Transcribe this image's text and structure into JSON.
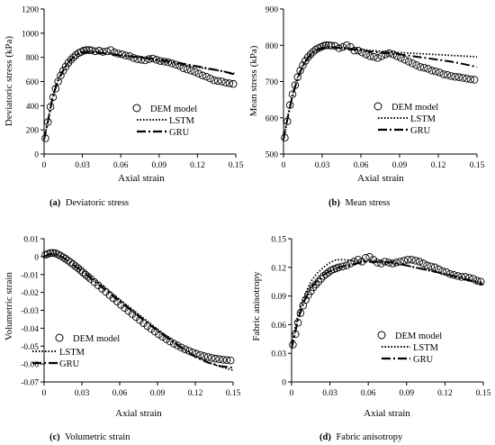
{
  "chart_data": [
    {
      "type": "line",
      "panel": "(a)",
      "caption_label": "(a)",
      "caption_text": "Deviatoric stress",
      "xlabel": "Axial strain",
      "ylabel": "Deviatoric stress (kPa)",
      "xlim": [
        0,
        0.15
      ],
      "ylim": [
        0,
        1200
      ],
      "xticks": [
        "0",
        "0.03",
        "0.06",
        "0.09",
        "0.12",
        "0.15"
      ],
      "yticks": [
        "0",
        "200",
        "400",
        "600",
        "800",
        "1000",
        "1200"
      ],
      "legend_position": "center-right",
      "series": [
        {
          "name": "DEM model",
          "style": "markers",
          "x": [
            0.001,
            0.003,
            0.005,
            0.007,
            0.009,
            0.011,
            0.013,
            0.015,
            0.017,
            0.019,
            0.021,
            0.023,
            0.025,
            0.027,
            0.029,
            0.031,
            0.033,
            0.035,
            0.037,
            0.04,
            0.043,
            0.046,
            0.049,
            0.052,
            0.055,
            0.058,
            0.061,
            0.064,
            0.067,
            0.07,
            0.073,
            0.076,
            0.079,
            0.082,
            0.085,
            0.088,
            0.091,
            0.094,
            0.097,
            0.1,
            0.103,
            0.106,
            0.109,
            0.112,
            0.115,
            0.118,
            0.121,
            0.124,
            0.127,
            0.13,
            0.133,
            0.136,
            0.139,
            0.142,
            0.145,
            0.148
          ],
          "y": [
            130,
            265,
            390,
            470,
            540,
            600,
            650,
            690,
            725,
            755,
            780,
            800,
            820,
            835,
            845,
            855,
            860,
            860,
            858,
            850,
            855,
            845,
            850,
            860,
            840,
            830,
            825,
            815,
            810,
            795,
            785,
            780,
            775,
            785,
            790,
            780,
            770,
            765,
            760,
            750,
            740,
            730,
            710,
            700,
            690,
            680,
            665,
            650,
            640,
            625,
            610,
            605,
            600,
            590,
            585,
            580
          ]
        },
        {
          "name": "LSTM",
          "style": "dotted",
          "x": [
            0,
            0.003,
            0.006,
            0.009,
            0.012,
            0.015,
            0.018,
            0.021,
            0.024,
            0.027,
            0.03,
            0.035,
            0.04,
            0.045,
            0.05,
            0.06,
            0.07,
            0.08,
            0.09,
            0.1,
            0.11,
            0.12,
            0.13,
            0.14,
            0.15
          ],
          "y": [
            120,
            280,
            440,
            560,
            640,
            700,
            745,
            785,
            815,
            835,
            845,
            852,
            848,
            842,
            835,
            820,
            805,
            790,
            770,
            750,
            735,
            720,
            700,
            685,
            665
          ]
        },
        {
          "name": "GRU",
          "style": "dashdot",
          "x": [
            0,
            0.003,
            0.006,
            0.009,
            0.012,
            0.015,
            0.018,
            0.021,
            0.024,
            0.027,
            0.03,
            0.035,
            0.04,
            0.045,
            0.05,
            0.06,
            0.07,
            0.08,
            0.09,
            0.1,
            0.11,
            0.12,
            0.13,
            0.14,
            0.15
          ],
          "y": [
            120,
            270,
            430,
            550,
            630,
            690,
            740,
            780,
            810,
            830,
            840,
            845,
            840,
            835,
            830,
            815,
            805,
            795,
            780,
            765,
            745,
            725,
            705,
            685,
            655
          ]
        }
      ]
    },
    {
      "type": "line",
      "panel": "(b)",
      "caption_label": "(b)",
      "caption_text": "Mean stress",
      "xlabel": "Axial strain",
      "ylabel": "Mean stress (kPa)",
      "xlim": [
        0,
        0.15
      ],
      "ylim": [
        500,
        900
      ],
      "xticks": [
        "0",
        "0.03",
        "0.06",
        "0.09",
        "0.12",
        "0.15"
      ],
      "yticks": [
        "500",
        "600",
        "700",
        "800",
        "900"
      ],
      "legend_position": "center-right",
      "series": [
        {
          "name": "DEM model",
          "style": "markers",
          "x": [
            0.001,
            0.003,
            0.005,
            0.007,
            0.009,
            0.011,
            0.013,
            0.015,
            0.017,
            0.019,
            0.021,
            0.023,
            0.025,
            0.027,
            0.029,
            0.031,
            0.033,
            0.035,
            0.037,
            0.04,
            0.043,
            0.046,
            0.049,
            0.052,
            0.055,
            0.058,
            0.061,
            0.064,
            0.067,
            0.07,
            0.073,
            0.076,
            0.079,
            0.082,
            0.085,
            0.088,
            0.091,
            0.094,
            0.097,
            0.1,
            0.103,
            0.106,
            0.109,
            0.112,
            0.115,
            0.118,
            0.121,
            0.124,
            0.127,
            0.13,
            0.133,
            0.136,
            0.139,
            0.142,
            0.145,
            0.148
          ],
          "y": [
            545,
            590,
            635,
            665,
            690,
            712,
            730,
            745,
            757,
            767,
            775,
            782,
            788,
            792,
            795,
            798,
            800,
            800,
            799,
            798,
            792,
            795,
            800,
            795,
            785,
            785,
            780,
            775,
            770,
            768,
            765,
            770,
            775,
            778,
            775,
            770,
            765,
            760,
            755,
            750,
            745,
            740,
            738,
            735,
            730,
            728,
            725,
            720,
            718,
            715,
            713,
            712,
            710,
            708,
            706,
            705
          ]
        },
        {
          "name": "LSTM",
          "style": "dotted",
          "x": [
            0,
            0.003,
            0.006,
            0.009,
            0.012,
            0.015,
            0.018,
            0.021,
            0.024,
            0.027,
            0.03,
            0.035,
            0.04,
            0.045,
            0.05,
            0.06,
            0.07,
            0.08,
            0.09,
            0.1,
            0.11,
            0.12,
            0.13,
            0.14,
            0.15
          ],
          "y": [
            540,
            600,
            650,
            690,
            722,
            745,
            762,
            775,
            785,
            790,
            793,
            796,
            795,
            794,
            792,
            788,
            785,
            782,
            780,
            778,
            776,
            774,
            772,
            770,
            768
          ]
        },
        {
          "name": "GRU",
          "style": "dashdot",
          "x": [
            0,
            0.003,
            0.006,
            0.009,
            0.012,
            0.015,
            0.018,
            0.021,
            0.024,
            0.027,
            0.03,
            0.035,
            0.04,
            0.045,
            0.05,
            0.06,
            0.07,
            0.08,
            0.09,
            0.1,
            0.11,
            0.12,
            0.13,
            0.14,
            0.15
          ],
          "y": [
            540,
            595,
            645,
            685,
            718,
            742,
            760,
            773,
            783,
            789,
            792,
            795,
            794,
            792,
            790,
            786,
            782,
            778,
            775,
            770,
            765,
            760,
            755,
            748,
            740
          ]
        }
      ]
    },
    {
      "type": "line",
      "panel": "(c)",
      "caption_label": "(c)",
      "caption_text": "Volumetric strain",
      "xlabel": "Axial strain",
      "ylabel": "Volumetric strain",
      "xlim": [
        0,
        0.15
      ],
      "ylim": [
        -0.07,
        0.01
      ],
      "xticks": [
        "0",
        "0.03",
        "0.06",
        "0.09",
        "0.12",
        "0.15"
      ],
      "yticks": [
        "0.01",
        "0",
        "-0.01",
        "-0.02",
        "-0.03",
        "-0.04",
        "-0.05",
        "-0.06",
        "-0.07"
      ],
      "legend_position": "bottom-left",
      "series": [
        {
          "name": "DEM model",
          "style": "markers",
          "x": [
            0.001,
            0.003,
            0.005,
            0.007,
            0.009,
            0.011,
            0.013,
            0.015,
            0.017,
            0.019,
            0.021,
            0.023,
            0.025,
            0.027,
            0.029,
            0.031,
            0.033,
            0.035,
            0.037,
            0.04,
            0.043,
            0.046,
            0.049,
            0.052,
            0.055,
            0.058,
            0.061,
            0.064,
            0.067,
            0.07,
            0.073,
            0.076,
            0.079,
            0.082,
            0.085,
            0.088,
            0.091,
            0.094,
            0.097,
            0.1,
            0.103,
            0.106,
            0.109,
            0.112,
            0.115,
            0.118,
            0.121,
            0.124,
            0.127,
            0.13,
            0.133,
            0.136,
            0.139,
            0.142,
            0.145,
            0.148
          ],
          "y": [
            0.001,
            0.0015,
            0.002,
            0.002,
            0.0018,
            0.0012,
            0.0005,
            -0.0003,
            -0.0012,
            -0.0022,
            -0.0032,
            -0.0043,
            -0.0054,
            -0.0065,
            -0.0077,
            -0.0089,
            -0.0101,
            -0.0113,
            -0.0125,
            -0.0143,
            -0.0161,
            -0.0179,
            -0.0197,
            -0.0215,
            -0.0233,
            -0.0251,
            -0.0269,
            -0.0287,
            -0.0304,
            -0.0321,
            -0.0338,
            -0.0355,
            -0.0372,
            -0.0388,
            -0.0404,
            -0.0419,
            -0.0434,
            -0.0448,
            -0.0461,
            -0.0474,
            -0.0486,
            -0.0497,
            -0.0508,
            -0.0518,
            -0.0527,
            -0.0535,
            -0.0543,
            -0.055,
            -0.0556,
            -0.0561,
            -0.0566,
            -0.057,
            -0.0573,
            -0.0576,
            -0.0578,
            -0.058
          ]
        },
        {
          "name": "LSTM",
          "style": "dotted",
          "x": [
            0,
            0.005,
            0.01,
            0.015,
            0.02,
            0.025,
            0.03,
            0.04,
            0.05,
            0.06,
            0.07,
            0.08,
            0.09,
            0.1,
            0.11,
            0.12,
            0.13,
            0.14,
            0.15
          ],
          "y": [
            0,
            0.0015,
            0.001,
            -0.0005,
            -0.0025,
            -0.005,
            -0.0075,
            -0.013,
            -0.0185,
            -0.024,
            -0.0295,
            -0.035,
            -0.0405,
            -0.046,
            -0.051,
            -0.0555,
            -0.059,
            -0.0615,
            -0.0635
          ]
        },
        {
          "name": "GRU",
          "style": "dashdot",
          "x": [
            0,
            0.005,
            0.01,
            0.015,
            0.02,
            0.025,
            0.03,
            0.04,
            0.05,
            0.06,
            0.07,
            0.08,
            0.09,
            0.1,
            0.11,
            0.12,
            0.13,
            0.14,
            0.15
          ],
          "y": [
            0,
            0.0015,
            0.0012,
            -0.0005,
            -0.003,
            -0.0055,
            -0.0082,
            -0.0138,
            -0.0194,
            -0.025,
            -0.0305,
            -0.036,
            -0.0413,
            -0.0465,
            -0.0515,
            -0.056,
            -0.0592,
            -0.0612,
            -0.062
          ]
        }
      ]
    },
    {
      "type": "line",
      "panel": "(d)",
      "caption_label": "(d)",
      "caption_text": "Fabric anisotropy",
      "xlabel": "Axial strain",
      "ylabel": "Fabric anisotropy",
      "xlim": [
        0,
        0.15
      ],
      "ylim": [
        0,
        0.15
      ],
      "xticks": [
        "0",
        "0.03",
        "0.06",
        "0.09",
        "0.12",
        "0.15"
      ],
      "yticks": [
        "0",
        "0.03",
        "0.06",
        "0.09",
        "0.12",
        "0.15"
      ],
      "legend_position": "center-right",
      "series": [
        {
          "name": "DEM model",
          "style": "markers",
          "x": [
            0.001,
            0.003,
            0.005,
            0.007,
            0.009,
            0.011,
            0.013,
            0.015,
            0.017,
            0.019,
            0.021,
            0.023,
            0.025,
            0.027,
            0.029,
            0.031,
            0.033,
            0.035,
            0.037,
            0.04,
            0.043,
            0.046,
            0.049,
            0.052,
            0.055,
            0.058,
            0.061,
            0.064,
            0.067,
            0.07,
            0.073,
            0.076,
            0.079,
            0.082,
            0.085,
            0.088,
            0.091,
            0.094,
            0.097,
            0.1,
            0.103,
            0.106,
            0.109,
            0.112,
            0.115,
            0.118,
            0.121,
            0.124,
            0.127,
            0.13,
            0.133,
            0.136,
            0.139,
            0.142,
            0.145,
            0.148
          ],
          "y": [
            0.039,
            0.05,
            0.062,
            0.072,
            0.08,
            0.086,
            0.091,
            0.095,
            0.099,
            0.102,
            0.105,
            0.108,
            0.111,
            0.113,
            0.115,
            0.117,
            0.118,
            0.119,
            0.12,
            0.121,
            0.122,
            0.124,
            0.126,
            0.128,
            0.126,
            0.13,
            0.131,
            0.128,
            0.125,
            0.124,
            0.126,
            0.125,
            0.124,
            0.125,
            0.126,
            0.127,
            0.128,
            0.128,
            0.127,
            0.126,
            0.124,
            0.122,
            0.121,
            0.12,
            0.118,
            0.116,
            0.115,
            0.113,
            0.112,
            0.111,
            0.11,
            0.11,
            0.109,
            0.108,
            0.106,
            0.105
          ]
        },
        {
          "name": "LSTM",
          "style": "dotted",
          "x": [
            0,
            0.005,
            0.01,
            0.015,
            0.02,
            0.025,
            0.03,
            0.035,
            0.04,
            0.05,
            0.06,
            0.07,
            0.08,
            0.09,
            0.1,
            0.11,
            0.12,
            0.13,
            0.14,
            0.15
          ],
          "y": [
            0.04,
            0.07,
            0.09,
            0.105,
            0.114,
            0.12,
            0.125,
            0.128,
            0.128,
            0.127,
            0.126,
            0.125,
            0.124,
            0.122,
            0.119,
            0.116,
            0.113,
            0.11,
            0.107,
            0.104
          ]
        },
        {
          "name": "GRU",
          "style": "dashdot",
          "x": [
            0,
            0.005,
            0.01,
            0.015,
            0.02,
            0.025,
            0.03,
            0.035,
            0.04,
            0.05,
            0.06,
            0.07,
            0.08,
            0.09,
            0.1,
            0.11,
            0.12,
            0.13,
            0.14,
            0.15
          ],
          "y": [
            0.035,
            0.065,
            0.085,
            0.098,
            0.106,
            0.112,
            0.116,
            0.119,
            0.121,
            0.124,
            0.126,
            0.126,
            0.125,
            0.122,
            0.119,
            0.116,
            0.113,
            0.11,
            0.106,
            0.102
          ]
        }
      ]
    }
  ]
}
